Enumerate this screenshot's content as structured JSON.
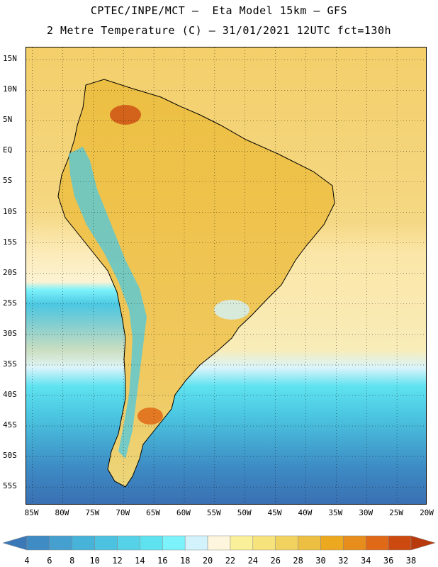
{
  "header": {
    "title_line1": "CPTEC/INPE/MCT –  Eta Model 15km – GFS",
    "title_line2": "2 Metre Temperature (C) – 31/01/2021 12UTC fct=130h"
  },
  "map": {
    "lat_labels": [
      "15N",
      "10N",
      "5N",
      "EQ",
      "5S",
      "10S",
      "15S",
      "20S",
      "25S",
      "30S",
      "35S",
      "40S",
      "45S",
      "50S",
      "55S"
    ],
    "lat_values": [
      15,
      10,
      5,
      0,
      -5,
      -10,
      -15,
      -20,
      -25,
      -30,
      -35,
      -40,
      -45,
      -50,
      -55
    ],
    "lon_labels": [
      "85W",
      "80W",
      "75W",
      "70W",
      "65W",
      "60W",
      "55W",
      "50W",
      "45W",
      "40W",
      "35W",
      "30W",
      "25W",
      "20W"
    ],
    "lon_values": [
      -85,
      -80,
      -75,
      -70,
      -65,
      -60,
      -55,
      -50,
      -45,
      -40,
      -35,
      -30,
      -25,
      -20
    ],
    "lat_range": [
      -58,
      17
    ],
    "lon_range": [
      -86,
      -20
    ],
    "gridlines": "dotted"
  },
  "colorbar": {
    "labels": [
      "4",
      "6",
      "8",
      "10",
      "12",
      "14",
      "16",
      "18",
      "20",
      "22",
      "24",
      "26",
      "28",
      "30",
      "32",
      "34",
      "36",
      "38"
    ],
    "colors": [
      "#3a78b8",
      "#3f8bc4",
      "#46a0cf",
      "#48b3d8",
      "#4cc2e0",
      "#55d2e8",
      "#5fe2f0",
      "#7cf2fb",
      "#d2f3fb",
      "#fdf6dc",
      "#fbf09a",
      "#f7e37c",
      "#f2d25e",
      "#ecbf43",
      "#eca81f",
      "#e68d1c",
      "#df6916",
      "#cc4a10",
      "#b8390c"
    ],
    "unit": "C"
  }
}
